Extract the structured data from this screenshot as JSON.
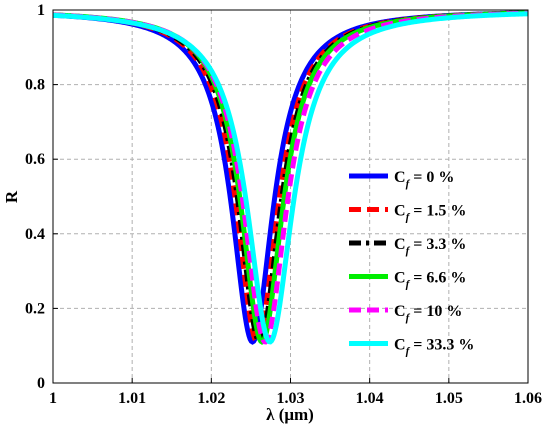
{
  "chart_data": {
    "type": "line",
    "title": "",
    "xlabel": "λ (μm)",
    "ylabel": "R",
    "xlim": [
      1,
      1.06
    ],
    "ylim": [
      0,
      1
    ],
    "x_ticks": [
      "1",
      "1.01",
      "1.02",
      "1.03",
      "1.04",
      "1.05",
      "1.06"
    ],
    "y_ticks": [
      "0",
      "0.2",
      "0.4",
      "0.6",
      "0.8",
      "1"
    ],
    "grid": true,
    "legend_position": "right",
    "series": [
      {
        "name": "C_f = 0 %",
        "legend_main": "C",
        "legend_sub": "f",
        "legend_rest": " = 0 %",
        "color": "#0000ff",
        "dash": "solid",
        "x0": 1.0252,
        "width": 0.0032,
        "min_y": 0.11
      },
      {
        "name": "C_f = 1.5 %",
        "legend_main": "C",
        "legend_sub": "f",
        "legend_rest": " = 1.5 %",
        "color": "#ff0000",
        "dash": "dashed",
        "x0": 1.0258,
        "width": 0.0032,
        "min_y": 0.11
      },
      {
        "name": "C_f = 3.3 %",
        "legend_main": "C",
        "legend_sub": "f",
        "legend_rest": " = 3.3 %",
        "color": "#000000",
        "dash": "dashdot",
        "x0": 1.0261,
        "width": 0.0032,
        "min_y": 0.11
      },
      {
        "name": "C_f = 6.6 %",
        "legend_main": "C",
        "legend_sub": "f",
        "legend_rest": " = 6.6 %",
        "color": "#00ee00",
        "dash": "solid",
        "x0": 1.0264,
        "width": 0.0032,
        "min_y": 0.11
      },
      {
        "name": "C_f = 10 %",
        "legend_main": "C",
        "legend_sub": "f",
        "legend_rest": " = 10 %",
        "color": "#ff00ff",
        "dash": "dashed",
        "x0": 1.0268,
        "width": 0.0033,
        "min_y": 0.11
      },
      {
        "name": "C_f = 33.3 %",
        "legend_main": "C",
        "legend_sub": "f",
        "legend_rest": " = 33.3 %",
        "color": "#00ffff",
        "dash": "solid",
        "x0": 1.0274,
        "width": 0.0035,
        "min_y": 0.11
      }
    ]
  }
}
